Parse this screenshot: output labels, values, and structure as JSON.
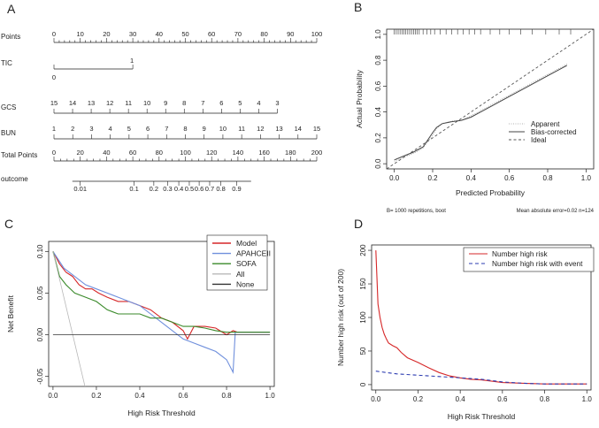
{
  "colors": {
    "axis": "#222222",
    "red": "#d62728",
    "blue": "#6f8fdc",
    "green": "#3a8a2a",
    "grey": "#b8b8b8",
    "dark": "#333333",
    "navy": "#2b3bb0"
  },
  "panel_labels": [
    "A",
    "B",
    "C",
    "D"
  ],
  "chart_data": [
    {
      "panel": "A",
      "type": "nomogram",
      "rows": [
        {
          "name": "Points",
          "range": [
            0,
            100
          ],
          "ticks": [
            0,
            10,
            20,
            30,
            40,
            50,
            60,
            70,
            80,
            90,
            100
          ],
          "minor_step": 2
        },
        {
          "name": "TIC",
          "range": [
            0,
            30
          ],
          "labels": [
            {
              "text": "1",
              "at": 30,
              "pos": "above"
            },
            {
              "text": "0",
              "at": 0,
              "pos": "below"
            }
          ]
        },
        {
          "name": "GCS",
          "map": {
            "from": [
              15,
              3
            ],
            "to": [
              0,
              85
            ]
          },
          "ticks": [
            15,
            14,
            13,
            12,
            11,
            10,
            9,
            8,
            7,
            6,
            5,
            4,
            3
          ]
        },
        {
          "name": "BUN",
          "map": {
            "from": [
              1,
              15
            ],
            "to": [
              0,
              100
            ]
          },
          "ticks": [
            1,
            2,
            3,
            4,
            5,
            6,
            7,
            8,
            9,
            10,
            11,
            12,
            13,
            14,
            15
          ]
        },
        {
          "name": "Total Points",
          "range": [
            0,
            200
          ],
          "ticks": [
            0,
            20,
            40,
            60,
            80,
            100,
            120,
            140,
            160,
            180,
            200
          ],
          "minor_step": 5
        },
        {
          "name": "outcome",
          "prob_ticks": [
            0.01,
            0.1,
            0.2,
            0.3,
            0.4,
            0.5,
            0.6,
            0.7,
            0.8,
            0.9
          ],
          "points_at": [
            20,
            61,
            76,
            86.5,
            95,
            103,
            110.5,
            118.5,
            127,
            139
          ],
          "range": [
            14,
            150
          ]
        }
      ]
    },
    {
      "panel": "B",
      "type": "line",
      "title": "",
      "xlabel": "Predicted Probability",
      "ylabel": "Actual Probability",
      "xlim": [
        -0.04,
        1.04
      ],
      "ylim": [
        -0.04,
        1.04
      ],
      "xticks": [
        "0.0",
        "0.2",
        "0.4",
        "0.6",
        "0.8",
        "1.0"
      ],
      "yticks": [
        "0.0",
        "0.2",
        "0.4",
        "0.6",
        "0.8",
        "1.0"
      ],
      "series": [
        {
          "name": "Apparent",
          "style": "dotted",
          "x": [
            0,
            0.05,
            0.1,
            0.15,
            0.2,
            0.22,
            0.25,
            0.3,
            0.35,
            0.4,
            0.5,
            0.6,
            0.7,
            0.8,
            0.9
          ],
          "y": [
            0.02,
            0.05,
            0.08,
            0.12,
            0.22,
            0.27,
            0.31,
            0.33,
            0.335,
            0.37,
            0.45,
            0.53,
            0.61,
            0.69,
            0.77
          ]
        },
        {
          "name": "Bias-corrected",
          "style": "solid",
          "x": [
            0,
            0.05,
            0.1,
            0.15,
            0.2,
            0.22,
            0.25,
            0.3,
            0.35,
            0.4,
            0.5,
            0.6,
            0.7,
            0.8,
            0.9
          ],
          "y": [
            0.03,
            0.06,
            0.09,
            0.13,
            0.24,
            0.28,
            0.31,
            0.325,
            0.335,
            0.36,
            0.44,
            0.52,
            0.6,
            0.68,
            0.76
          ]
        },
        {
          "name": "Ideal",
          "style": "dashed",
          "x": [
            -0.04,
            1.04
          ],
          "y": [
            -0.04,
            1.04
          ]
        }
      ],
      "rug": [
        0.0,
        0.01,
        0.02,
        0.03,
        0.04,
        0.05,
        0.06,
        0.07,
        0.08,
        0.09,
        0.1,
        0.11,
        0.12,
        0.13,
        0.15,
        0.17,
        0.19,
        0.21,
        0.24,
        0.27,
        0.3,
        0.33,
        0.36,
        0.39,
        0.42,
        0.45,
        0.5,
        0.55,
        0.6,
        0.66,
        0.72,
        0.79,
        0.86,
        0.92
      ],
      "legend": {
        "position": "bottom-right",
        "entries": [
          "Apparent",
          "Bias-corrected",
          "Ideal"
        ]
      },
      "footnote_left": "B= 1000 repetitions, boot",
      "footnote_right": "Mean absolute error=0.02 n=124"
    },
    {
      "panel": "C",
      "type": "line",
      "xlabel": "High Risk Threshold",
      "ylabel": "Net Benefit",
      "xlim": [
        -0.02,
        1.02
      ],
      "ylim": [
        -0.062,
        0.112
      ],
      "xticks": [
        "0.0",
        "0.2",
        "0.4",
        "0.6",
        "0.8",
        "1.0"
      ],
      "yticks": [
        "-0.05",
        "0.00",
        "0.05",
        "0.10"
      ],
      "series": [
        {
          "name": "Model",
          "color": "red",
          "x": [
            0,
            0.03,
            0.06,
            0.09,
            0.12,
            0.15,
            0.18,
            0.21,
            0.25,
            0.3,
            0.35,
            0.4,
            0.45,
            0.5,
            0.55,
            0.6,
            0.62,
            0.65,
            0.7,
            0.75,
            0.8,
            0.83,
            0.85,
            0.9,
            1.0
          ],
          "y": [
            0.1,
            0.085,
            0.075,
            0.07,
            0.06,
            0.055,
            0.055,
            0.05,
            0.045,
            0.04,
            0.04,
            0.035,
            0.03,
            0.02,
            0.015,
            0.005,
            -0.005,
            0.01,
            0.01,
            0.008,
            0.0,
            0.005,
            0.003,
            0.003,
            0.003
          ]
        },
        {
          "name": "APAHCEII",
          "color": "blue",
          "x": [
            0,
            0.05,
            0.1,
            0.15,
            0.2,
            0.25,
            0.3,
            0.35,
            0.4,
            0.45,
            0.5,
            0.55,
            0.6,
            0.65,
            0.7,
            0.75,
            0.8,
            0.83,
            0.84,
            0.85,
            0.9,
            1.0
          ],
          "y": [
            0.1,
            0.08,
            0.07,
            0.06,
            0.055,
            0.05,
            0.045,
            0.04,
            0.035,
            0.025,
            0.015,
            0.005,
            -0.005,
            -0.01,
            -0.015,
            -0.02,
            -0.03,
            -0.045,
            0.003,
            0.003,
            0.003,
            0.003
          ]
        },
        {
          "name": "SOFA",
          "color": "green",
          "x": [
            0,
            0.03,
            0.06,
            0.1,
            0.15,
            0.2,
            0.25,
            0.3,
            0.35,
            0.4,
            0.45,
            0.5,
            0.55,
            0.6,
            0.65,
            0.7,
            0.75,
            0.8,
            0.9,
            1.0
          ],
          "y": [
            0.1,
            0.07,
            0.06,
            0.05,
            0.045,
            0.04,
            0.03,
            0.025,
            0.025,
            0.025,
            0.02,
            0.02,
            0.015,
            0.01,
            0.01,
            0.008,
            0.005,
            0.003,
            0.003,
            0.003
          ]
        },
        {
          "name": "All",
          "color": "grey",
          "x": [
            0,
            0.15
          ],
          "y": [
            0.1,
            -0.065
          ]
        },
        {
          "name": "None",
          "color": "dark",
          "x": [
            0,
            1.0
          ],
          "y": [
            0,
            0
          ]
        }
      ],
      "legend": {
        "position": "top-right",
        "entries": [
          "Model",
          "APAHCEII",
          "SOFA",
          "All",
          "None"
        ]
      }
    },
    {
      "panel": "D",
      "type": "line",
      "xlabel": "High Risk Threshold",
      "ylabel": "Number high risk (out of 200)",
      "xlim": [
        -0.02,
        1.02
      ],
      "ylim": [
        -8,
        208
      ],
      "xticks": [
        "0.0",
        "0.2",
        "0.4",
        "0.6",
        "0.8",
        "1.0"
      ],
      "yticks": [
        "0",
        "50",
        "100",
        "150",
        "200"
      ],
      "series": [
        {
          "name": "Number high risk",
          "color": "red",
          "style": "solid",
          "x": [
            0,
            0.005,
            0.01,
            0.02,
            0.03,
            0.04,
            0.05,
            0.06,
            0.08,
            0.1,
            0.12,
            0.15,
            0.2,
            0.25,
            0.3,
            0.35,
            0.4,
            0.45,
            0.5,
            0.55,
            0.6,
            0.7,
            0.8,
            0.9,
            1.0
          ],
          "y": [
            200,
            160,
            120,
            100,
            85,
            75,
            68,
            62,
            58,
            55,
            48,
            40,
            33,
            25,
            18,
            13,
            10,
            8,
            7,
            5,
            3,
            2,
            1,
            1,
            1
          ]
        },
        {
          "name": "Number high risk with event",
          "color": "navy",
          "style": "dashed",
          "x": [
            0,
            0.05,
            0.1,
            0.2,
            0.3,
            0.4,
            0.5,
            0.6,
            0.7,
            0.8,
            0.9,
            1.0
          ],
          "y": [
            20,
            18,
            16,
            14,
            12,
            10,
            8,
            4,
            2,
            1,
            1,
            1
          ]
        }
      ],
      "legend": {
        "position": "top-right",
        "entries": [
          "Number high risk",
          "Number high risk with event"
        ]
      }
    }
  ]
}
